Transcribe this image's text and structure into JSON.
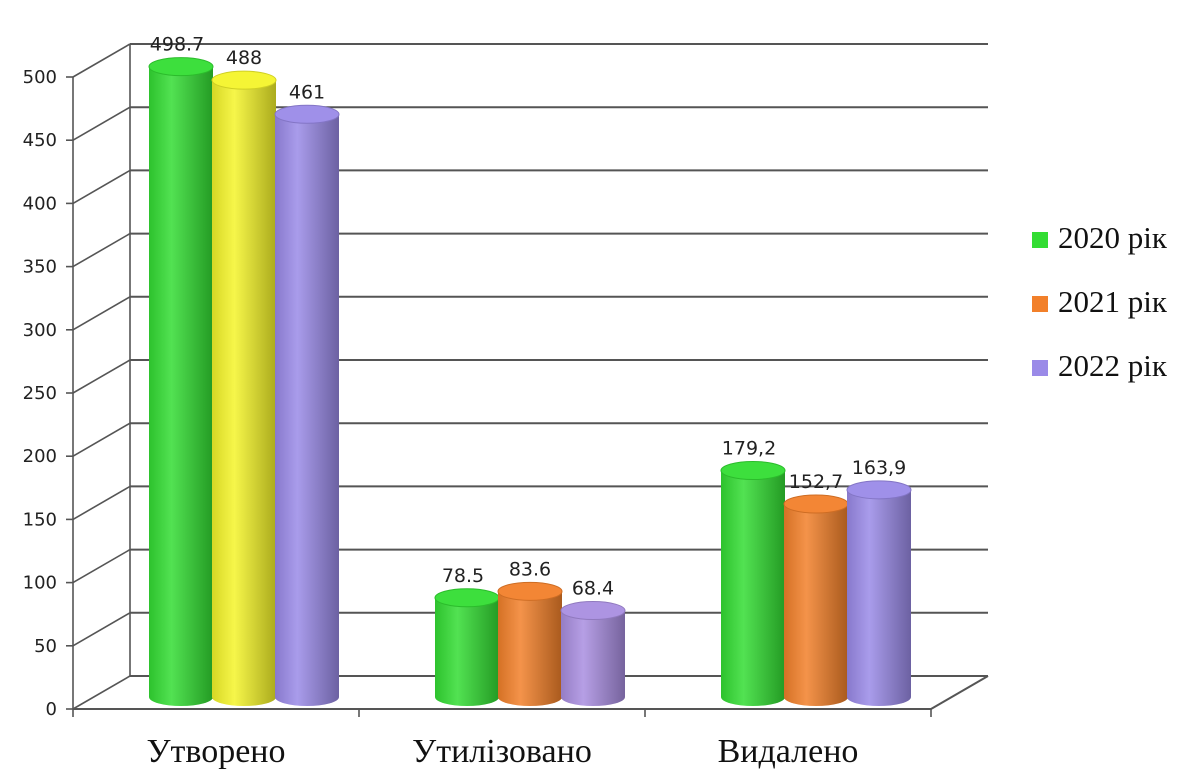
{
  "chart_data": {
    "type": "bar",
    "categories": [
      "Утворено",
      "Утилізовано",
      "Видалено"
    ],
    "series": [
      {
        "name": "2020 рік",
        "values": [
          498.7,
          78.5,
          179.2
        ],
        "labels": [
          "498.7",
          "78.5",
          "179,2"
        ],
        "colors": [
          "#33dd33",
          "#33dd33",
          "#33dd33"
        ]
      },
      {
        "name": "2021 рік",
        "values": [
          488,
          83.6,
          152.7
        ],
        "labels": [
          "488",
          "83.6",
          "152,7"
        ],
        "colors": [
          "#f4f42a",
          "#f2802a",
          "#f2802a"
        ]
      },
      {
        "name": "2022 рік",
        "values": [
          461,
          68.4,
          163.9
        ],
        "labels": [
          "461",
          "68.4",
          "163,9"
        ],
        "colors": [
          "#9a8ae8",
          "#a98ee0",
          "#9a8ae8"
        ]
      }
    ],
    "legend": {
      "position": "right",
      "entries": [
        {
          "label": "2020 рік",
          "color": "#33dd33"
        },
        {
          "label": "2021 рік",
          "color": "#f2802a"
        },
        {
          "label": "2022 рік",
          "color": "#9a8ae8"
        }
      ]
    },
    "ylim": [
      0,
      500
    ],
    "yticks": [
      "0",
      "50",
      "100",
      "150",
      "200",
      "250",
      "300",
      "350",
      "400",
      "450",
      "500"
    ],
    "grid": true,
    "style": "3d-cylinder"
  }
}
